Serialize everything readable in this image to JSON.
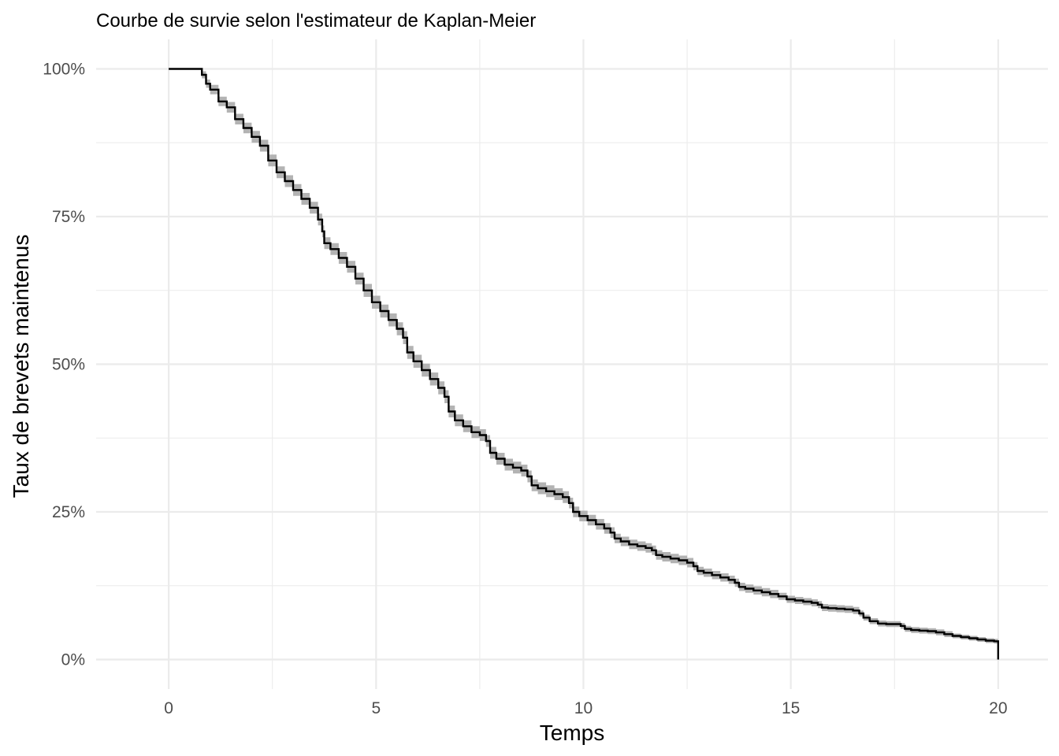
{
  "chart_data": {
    "type": "line",
    "title": "Courbe de survie selon l'estimateur de Kaplan-Meier",
    "xlabel": "Temps",
    "ylabel": "Taux de brevets maintenus",
    "xlim": [
      -1.75,
      21.2
    ],
    "ylim": [
      -0.05,
      1.05
    ],
    "x_ticks": [
      0,
      5,
      10,
      15,
      20
    ],
    "x_tick_labels": [
      "0",
      "5",
      "10",
      "15",
      "20"
    ],
    "y_ticks": [
      0,
      0.25,
      0.5,
      0.75,
      1.0
    ],
    "y_tick_labels": [
      "0%",
      "25%",
      "50%",
      "75%",
      "100%"
    ],
    "grid": true,
    "legend": "none",
    "colors": {
      "line": "#000000",
      "ribbon": "#b3b3b3",
      "grid": "#ebebeb"
    },
    "series": [
      {
        "x": [
          0,
          0.7,
          0.8,
          0.9,
          1.0,
          1.2,
          1.4,
          1.6,
          1.8,
          2.0,
          2.2,
          2.4,
          2.6,
          2.8,
          3.0,
          3.2,
          3.4,
          3.6,
          3.7,
          3.75,
          3.9,
          4.1,
          4.3,
          4.5,
          4.7,
          4.9,
          5.1,
          5.3,
          5.5,
          5.65,
          5.75,
          5.9,
          6.1,
          6.3,
          6.5,
          6.65,
          6.75,
          6.9,
          7.1,
          7.3,
          7.5,
          7.65,
          7.75,
          7.9,
          8.1,
          8.3,
          8.5,
          8.65,
          8.75,
          8.9,
          9.1,
          9.3,
          9.5,
          9.65,
          9.75,
          9.9,
          10.1,
          10.3,
          10.5,
          10.65,
          10.75,
          10.9,
          11.1,
          11.3,
          11.5,
          11.65,
          11.75,
          11.9,
          12.1,
          12.3,
          12.5,
          12.65,
          12.75,
          12.9,
          13.1,
          13.3,
          13.5,
          13.65,
          13.75,
          13.9,
          14.1,
          14.3,
          14.5,
          14.7,
          14.9,
          15.1,
          15.3,
          15.5,
          15.65,
          15.75,
          15.9,
          16.1,
          16.3,
          16.5,
          16.65,
          16.75,
          16.9,
          17.1,
          17.3,
          17.5,
          17.65,
          17.75,
          17.9,
          18.1,
          18.3,
          18.5,
          18.7,
          18.9,
          19.1,
          19.3,
          19.5,
          19.7,
          19.9,
          20.0
        ],
        "y": [
          1.0,
          1.0,
          0.99,
          0.975,
          0.965,
          0.945,
          0.935,
          0.915,
          0.9,
          0.885,
          0.87,
          0.845,
          0.825,
          0.81,
          0.795,
          0.78,
          0.765,
          0.745,
          0.725,
          0.705,
          0.695,
          0.68,
          0.665,
          0.645,
          0.625,
          0.605,
          0.59,
          0.575,
          0.56,
          0.545,
          0.52,
          0.505,
          0.49,
          0.475,
          0.46,
          0.445,
          0.42,
          0.405,
          0.395,
          0.385,
          0.38,
          0.37,
          0.35,
          0.34,
          0.33,
          0.325,
          0.32,
          0.31,
          0.295,
          0.29,
          0.285,
          0.28,
          0.275,
          0.265,
          0.25,
          0.243,
          0.236,
          0.229,
          0.222,
          0.215,
          0.205,
          0.2,
          0.195,
          0.192,
          0.189,
          0.185,
          0.177,
          0.174,
          0.171,
          0.168,
          0.164,
          0.158,
          0.15,
          0.147,
          0.143,
          0.139,
          0.135,
          0.13,
          0.123,
          0.12,
          0.117,
          0.114,
          0.111,
          0.107,
          0.102,
          0.1,
          0.098,
          0.096,
          0.093,
          0.088,
          0.087,
          0.086,
          0.085,
          0.083,
          0.078,
          0.071,
          0.065,
          0.061,
          0.06,
          0.06,
          0.057,
          0.052,
          0.05,
          0.049,
          0.048,
          0.046,
          0.043,
          0.04,
          0.038,
          0.036,
          0.034,
          0.032,
          0.031,
          0.0
        ],
        "lower": [
          1.0,
          1.0,
          0.984,
          0.968,
          0.957,
          0.937,
          0.926,
          0.906,
          0.891,
          0.875,
          0.86,
          0.835,
          0.815,
          0.8,
          0.785,
          0.77,
          0.755,
          0.735,
          0.715,
          0.695,
          0.685,
          0.67,
          0.655,
          0.635,
          0.614,
          0.594,
          0.579,
          0.564,
          0.549,
          0.534,
          0.509,
          0.494,
          0.479,
          0.464,
          0.449,
          0.434,
          0.41,
          0.395,
          0.385,
          0.375,
          0.37,
          0.36,
          0.34,
          0.33,
          0.32,
          0.315,
          0.31,
          0.3,
          0.285,
          0.28,
          0.275,
          0.27,
          0.265,
          0.256,
          0.241,
          0.234,
          0.227,
          0.22,
          0.213,
          0.206,
          0.197,
          0.192,
          0.187,
          0.184,
          0.181,
          0.177,
          0.169,
          0.166,
          0.163,
          0.16,
          0.156,
          0.151,
          0.143,
          0.14,
          0.136,
          0.132,
          0.128,
          0.123,
          0.116,
          0.113,
          0.11,
          0.107,
          0.104,
          0.101,
          0.096,
          0.094,
          0.092,
          0.09,
          0.087,
          0.082,
          0.081,
          0.08,
          0.079,
          0.077,
          0.073,
          0.066,
          0.06,
          0.056,
          0.055,
          0.055,
          0.052,
          0.047,
          0.045,
          0.044,
          0.043,
          0.041,
          0.038,
          0.036,
          0.034,
          0.032,
          0.03,
          0.028,
          0.027,
          0.0
        ],
        "upper": [
          1.0,
          1.0,
          0.996,
          0.982,
          0.973,
          0.953,
          0.944,
          0.924,
          0.909,
          0.895,
          0.88,
          0.855,
          0.835,
          0.82,
          0.805,
          0.79,
          0.775,
          0.755,
          0.735,
          0.715,
          0.705,
          0.69,
          0.675,
          0.655,
          0.636,
          0.616,
          0.601,
          0.586,
          0.571,
          0.556,
          0.531,
          0.516,
          0.501,
          0.486,
          0.471,
          0.456,
          0.43,
          0.415,
          0.405,
          0.395,
          0.39,
          0.38,
          0.36,
          0.35,
          0.34,
          0.335,
          0.33,
          0.32,
          0.305,
          0.3,
          0.295,
          0.29,
          0.285,
          0.274,
          0.259,
          0.252,
          0.245,
          0.238,
          0.231,
          0.224,
          0.213,
          0.208,
          0.203,
          0.2,
          0.197,
          0.193,
          0.185,
          0.182,
          0.179,
          0.176,
          0.172,
          0.165,
          0.157,
          0.154,
          0.15,
          0.146,
          0.142,
          0.137,
          0.13,
          0.127,
          0.124,
          0.121,
          0.118,
          0.113,
          0.108,
          0.106,
          0.104,
          0.102,
          0.099,
          0.094,
          0.093,
          0.092,
          0.091,
          0.089,
          0.083,
          0.076,
          0.07,
          0.066,
          0.065,
          0.065,
          0.062,
          0.057,
          0.055,
          0.054,
          0.053,
          0.051,
          0.048,
          0.044,
          0.042,
          0.04,
          0.038,
          0.036,
          0.035,
          0.035
        ]
      }
    ]
  }
}
